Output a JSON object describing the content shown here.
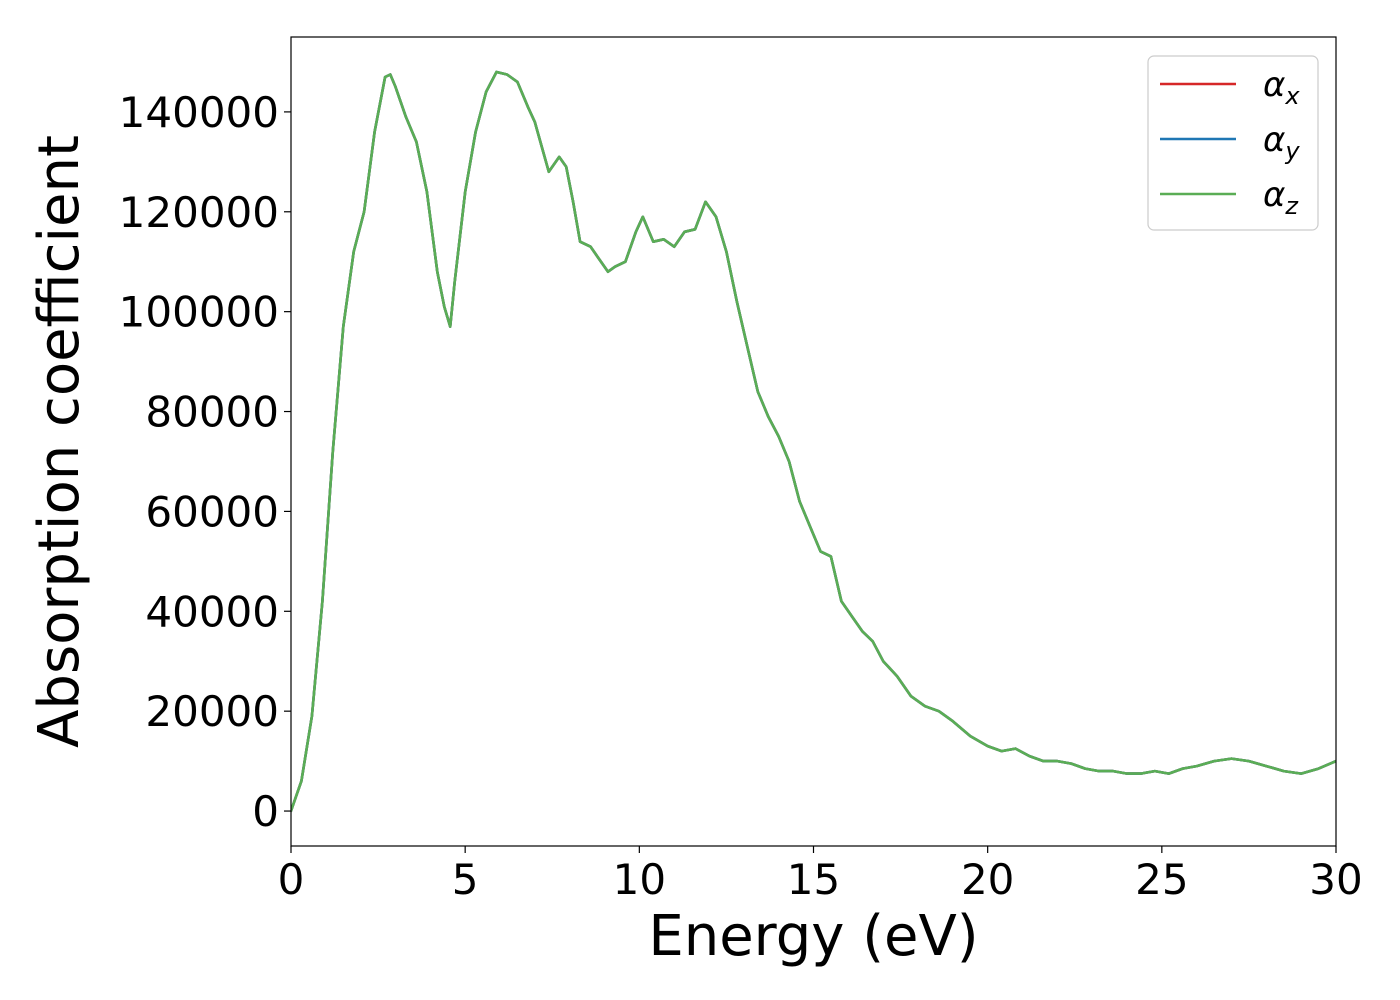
{
  "chart_data": {
    "type": "line",
    "xlabel": "Energy (eV)",
    "ylabel": "Absorption coefficient",
    "xlim": [
      0,
      30
    ],
    "ylim": [
      -7000,
      155000
    ],
    "xticks": [
      0,
      5,
      10,
      15,
      20,
      25,
      30
    ],
    "yticks": [
      0,
      20000,
      40000,
      60000,
      80000,
      100000,
      120000,
      140000
    ],
    "legend_position": "top-right",
    "grid": false,
    "series": [
      {
        "name": "α_x",
        "label_main": "α",
        "label_sub": "x",
        "color": "#d62728",
        "x": [
          0,
          0.3,
          0.6,
          0.9,
          1.2,
          1.5,
          1.8,
          2.1,
          2.4,
          2.7,
          2.85,
          3.0,
          3.3,
          3.6,
          3.9,
          4.2,
          4.4,
          4.57,
          4.7,
          5.0,
          5.3,
          5.6,
          5.9,
          6.2,
          6.5,
          6.8,
          7.0,
          7.2,
          7.4,
          7.7,
          7.9,
          8.1,
          8.3,
          8.6,
          8.8,
          9.1,
          9.3,
          9.6,
          9.9,
          10.1,
          10.4,
          10.7,
          11.0,
          11.3,
          11.6,
          11.9,
          12.2,
          12.5,
          12.8,
          13.1,
          13.4,
          13.7,
          14.0,
          14.3,
          14.6,
          14.9,
          15.2,
          15.5,
          15.8,
          16.1,
          16.4,
          16.7,
          17.0,
          17.4,
          17.8,
          18.2,
          18.6,
          19.0,
          19.5,
          20.0,
          20.4,
          20.8,
          21.2,
          21.6,
          22.0,
          22.4,
          22.8,
          23.2,
          23.6,
          24.0,
          24.4,
          24.8,
          25.2,
          25.6,
          26.0,
          26.5,
          27.0,
          27.5,
          28.0,
          28.5,
          29.0,
          29.5,
          30.0
        ],
        "y": [
          0,
          6000,
          19000,
          42000,
          72000,
          97000,
          112000,
          120000,
          136000,
          147000,
          147500,
          145000,
          139000,
          134000,
          124000,
          108000,
          101000,
          97000,
          106000,
          124000,
          136000,
          144000,
          148000,
          147500,
          146000,
          141000,
          138000,
          133000,
          128000,
          131000,
          129000,
          122000,
          114000,
          113000,
          111000,
          108000,
          109000,
          110000,
          116000,
          119000,
          114000,
          114500,
          113000,
          116000,
          116500,
          122000,
          119000,
          112000,
          102000,
          93000,
          84000,
          79000,
          75000,
          70000,
          62000,
          57000,
          52000,
          51000,
          42000,
          39000,
          36000,
          34000,
          30000,
          27000,
          23000,
          21000,
          20000,
          18000,
          15000,
          13000,
          12000,
          12500,
          11000,
          10000,
          10000,
          9500,
          8500,
          8000,
          8000,
          7500,
          7500,
          8000,
          7500,
          8500,
          9000,
          10000,
          10500,
          10000,
          9000,
          8000,
          7500,
          8500,
          10000
        ]
      },
      {
        "name": "α_y",
        "label_main": "α",
        "label_sub": "y",
        "color": "#1f77b4",
        "x": [
          0,
          0.3,
          0.6,
          0.9,
          1.2,
          1.5,
          1.8,
          2.1,
          2.4,
          2.7,
          2.85,
          3.0,
          3.3,
          3.6,
          3.9,
          4.2,
          4.4,
          4.57,
          4.7,
          5.0,
          5.3,
          5.6,
          5.9,
          6.2,
          6.5,
          6.8,
          7.0,
          7.2,
          7.4,
          7.7,
          7.9,
          8.1,
          8.3,
          8.6,
          8.8,
          9.1,
          9.3,
          9.6,
          9.9,
          10.1,
          10.4,
          10.7,
          11.0,
          11.3,
          11.6,
          11.9,
          12.2,
          12.5,
          12.8,
          13.1,
          13.4,
          13.7,
          14.0,
          14.3,
          14.6,
          14.9,
          15.2,
          15.5,
          15.8,
          16.1,
          16.4,
          16.7,
          17.0,
          17.4,
          17.8,
          18.2,
          18.6,
          19.0,
          19.5,
          20.0,
          20.4,
          20.8,
          21.2,
          21.6,
          22.0,
          22.4,
          22.8,
          23.2,
          23.6,
          24.0,
          24.4,
          24.8,
          25.2,
          25.6,
          26.0,
          26.5,
          27.0,
          27.5,
          28.0,
          28.5,
          29.0,
          29.5,
          30.0
        ],
        "y": [
          0,
          6000,
          19000,
          42000,
          72000,
          97000,
          112000,
          120000,
          136000,
          147000,
          147500,
          145000,
          139000,
          134000,
          124000,
          108000,
          101000,
          97000,
          106000,
          124000,
          136000,
          144000,
          148000,
          147500,
          146000,
          141000,
          138000,
          133000,
          128000,
          131000,
          129000,
          122000,
          114000,
          113000,
          111000,
          108000,
          109000,
          110000,
          116000,
          119000,
          114000,
          114500,
          113000,
          116000,
          116500,
          122000,
          119000,
          112000,
          102000,
          93000,
          84000,
          79000,
          75000,
          70000,
          62000,
          57000,
          52000,
          51000,
          42000,
          39000,
          36000,
          34000,
          30000,
          27000,
          23000,
          21000,
          20000,
          18000,
          15000,
          13000,
          12000,
          12500,
          11000,
          10000,
          10000,
          9500,
          8500,
          8000,
          8000,
          7500,
          7500,
          8000,
          7500,
          8500,
          9000,
          10000,
          10500,
          10000,
          9000,
          8000,
          7500,
          8500,
          10000
        ]
      },
      {
        "name": "α_z",
        "label_main": "α",
        "label_sub": "z",
        "color": "#5aad55",
        "x": [
          0,
          0.3,
          0.6,
          0.9,
          1.2,
          1.5,
          1.8,
          2.1,
          2.4,
          2.7,
          2.85,
          3.0,
          3.3,
          3.6,
          3.9,
          4.2,
          4.4,
          4.57,
          4.7,
          5.0,
          5.3,
          5.6,
          5.9,
          6.2,
          6.5,
          6.8,
          7.0,
          7.2,
          7.4,
          7.7,
          7.9,
          8.1,
          8.3,
          8.6,
          8.8,
          9.1,
          9.3,
          9.6,
          9.9,
          10.1,
          10.4,
          10.7,
          11.0,
          11.3,
          11.6,
          11.9,
          12.2,
          12.5,
          12.8,
          13.1,
          13.4,
          13.7,
          14.0,
          14.3,
          14.6,
          14.9,
          15.2,
          15.5,
          15.8,
          16.1,
          16.4,
          16.7,
          17.0,
          17.4,
          17.8,
          18.2,
          18.6,
          19.0,
          19.5,
          20.0,
          20.4,
          20.8,
          21.2,
          21.6,
          22.0,
          22.4,
          22.8,
          23.2,
          23.6,
          24.0,
          24.4,
          24.8,
          25.2,
          25.6,
          26.0,
          26.5,
          27.0,
          27.5,
          28.0,
          28.5,
          29.0,
          29.5,
          30.0
        ],
        "y": [
          0,
          6000,
          19000,
          42000,
          72000,
          97000,
          112000,
          120000,
          136000,
          147000,
          147500,
          145000,
          139000,
          134000,
          124000,
          108000,
          101000,
          97000,
          106000,
          124000,
          136000,
          144000,
          148000,
          147500,
          146000,
          141000,
          138000,
          133000,
          128000,
          131000,
          129000,
          122000,
          114000,
          113000,
          111000,
          108000,
          109000,
          110000,
          116000,
          119000,
          114000,
          114500,
          113000,
          116000,
          116500,
          122000,
          119000,
          112000,
          102000,
          93000,
          84000,
          79000,
          75000,
          70000,
          62000,
          57000,
          52000,
          51000,
          42000,
          39000,
          36000,
          34000,
          30000,
          27000,
          23000,
          21000,
          20000,
          18000,
          15000,
          13000,
          12000,
          12500,
          11000,
          10000,
          10000,
          9500,
          8500,
          8000,
          8000,
          7500,
          7500,
          8000,
          7500,
          8500,
          9000,
          10000,
          10500,
          10000,
          9000,
          8000,
          7500,
          8500,
          10000
        ]
      }
    ]
  }
}
